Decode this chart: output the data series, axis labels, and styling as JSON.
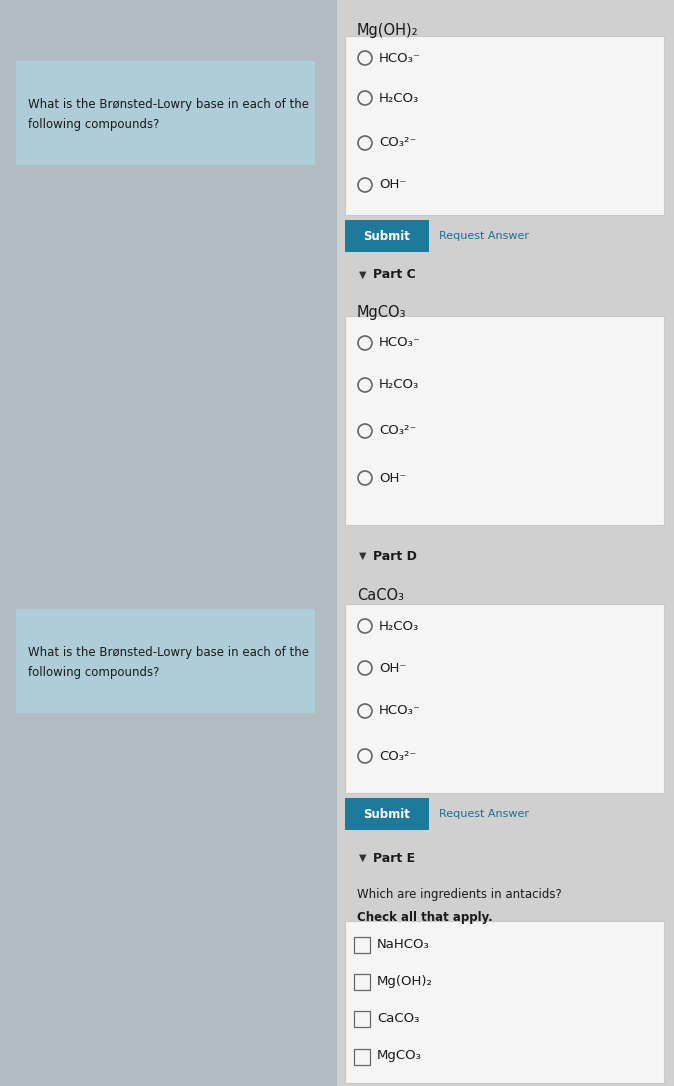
{
  "question_text_line1": "What is the Brønsted-Lowry base in each of the",
  "question_text_line2": "following compounds?",
  "question_bg": "#aecdd8",
  "left_bg": "#b0bcc2",
  "right_bg": "#d0d0d0",
  "white_box_color": "#f5f5f5",
  "white_box_edge": "#c8c8c8",
  "submit_color": "#1e7a9a",
  "request_color": "#1e6e9a",
  "radio_color": "#666666",
  "text_color": "#1a1a1a",
  "part_label_color": "#1a1a1a",
  "top_compound_B": "Mg(OH)₂",
  "options_B": [
    "HCO₃⁻",
    "H₂CO₃",
    "CO₃²⁻",
    "OH⁻"
  ],
  "part_C": "Part C",
  "compound_C": "MgCO₃",
  "options_C": [
    "HCO₃⁻",
    "H₂CO₃",
    "CO₃²⁻",
    "OH⁻"
  ],
  "part_D": "Part D",
  "compound_D": "CaCO₃",
  "options_D": [
    "H₂CO₃",
    "OH⁻",
    "HCO₃⁻",
    "CO₃²⁻"
  ],
  "part_E": "Part E",
  "question_E": "Which are ingredients in antacids?",
  "check_all": "Check all that apply.",
  "options_E": [
    "NaHCO₃",
    "Mg(OH)₂",
    "CaCO₃",
    "MgCO₃"
  ],
  "fig_width": 6.74,
  "fig_height": 10.86,
  "dpi": 100
}
